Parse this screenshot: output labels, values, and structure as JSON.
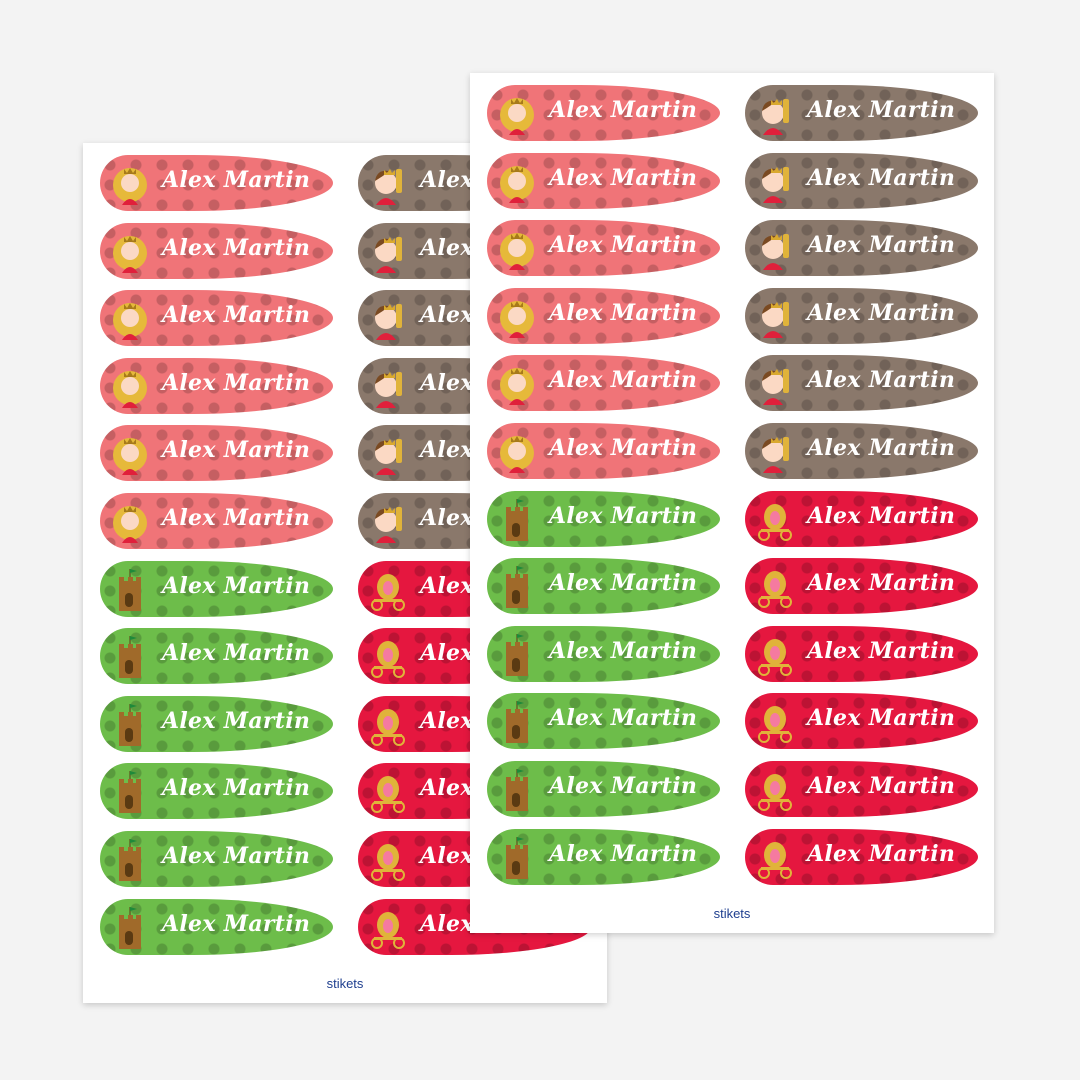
{
  "sticker_name": "Alex Martin",
  "brand_logo": "stikets",
  "designs": {
    "princess": {
      "color": "#f07478",
      "icon": "princess-icon"
    },
    "prince": {
      "color": "#8a786b",
      "icon": "prince-icon"
    },
    "castle": {
      "color": "#6dbd4a",
      "icon": "castle-icon"
    },
    "carriage": {
      "color": "#e5173f",
      "icon": "carriage-icon"
    }
  },
  "sheets": [
    {
      "id": "back",
      "columns": [
        [
          "princess",
          "princess",
          "princess",
          "princess",
          "princess",
          "princess",
          "castle",
          "castle",
          "castle",
          "castle",
          "castle",
          "castle"
        ],
        [
          "prince",
          "prince",
          "prince",
          "prince",
          "prince",
          "prince",
          "carriage",
          "carriage",
          "carriage",
          "carriage",
          "carriage",
          "carriage"
        ]
      ]
    },
    {
      "id": "front",
      "columns": [
        [
          "princess",
          "princess",
          "princess",
          "princess",
          "princess",
          "princess",
          "castle",
          "castle",
          "castle",
          "castle",
          "castle",
          "castle"
        ],
        [
          "prince",
          "prince",
          "prince",
          "prince",
          "prince",
          "prince",
          "carriage",
          "carriage",
          "carriage",
          "carriage",
          "carriage",
          "carriage"
        ]
      ]
    }
  ]
}
